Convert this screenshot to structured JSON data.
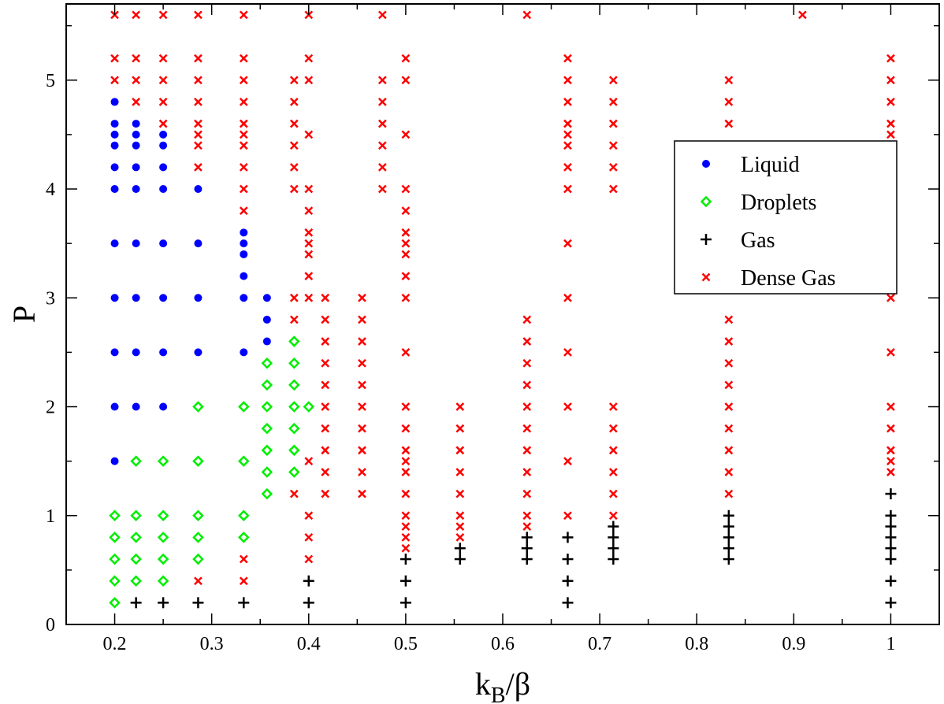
{
  "chart_data": {
    "type": "scatter",
    "xlabel": "k_B/β",
    "ylabel": "P",
    "xlim": [
      0.15,
      1.05
    ],
    "ylim": [
      0,
      5.7
    ],
    "x_ticks": [
      0.2,
      0.3,
      0.4,
      0.5,
      0.6,
      0.7,
      0.8,
      0.9,
      1.0
    ],
    "x_tick_labels": [
      "0.2",
      "0.3",
      "0.4",
      "0.5",
      "0.6",
      "0.7",
      "0.8",
      "0.9",
      "1"
    ],
    "y_ticks": [
      0,
      1,
      2,
      3,
      4,
      5
    ],
    "y_tick_labels": [
      "0",
      "1",
      "2",
      "3",
      "4",
      "5"
    ],
    "grid": false,
    "legend_position": "top-right",
    "series": [
      {
        "name": "Liquid",
        "marker": "circle",
        "color": "#0000ff",
        "points": [
          [
            0.2,
            1.5
          ],
          [
            0.2,
            2.0
          ],
          [
            0.2,
            2.5
          ],
          [
            0.2,
            3.0
          ],
          [
            0.2,
            3.5
          ],
          [
            0.2,
            4.0
          ],
          [
            0.2,
            4.2
          ],
          [
            0.2,
            4.4
          ],
          [
            0.2,
            4.5
          ],
          [
            0.2,
            4.6
          ],
          [
            0.2,
            4.8
          ],
          [
            0.222,
            2.0
          ],
          [
            0.222,
            2.5
          ],
          [
            0.222,
            3.0
          ],
          [
            0.222,
            3.5
          ],
          [
            0.222,
            4.0
          ],
          [
            0.222,
            4.2
          ],
          [
            0.222,
            4.4
          ],
          [
            0.222,
            4.5
          ],
          [
            0.222,
            4.6
          ],
          [
            0.25,
            2.0
          ],
          [
            0.25,
            2.5
          ],
          [
            0.25,
            3.0
          ],
          [
            0.25,
            3.5
          ],
          [
            0.25,
            4.0
          ],
          [
            0.25,
            4.2
          ],
          [
            0.25,
            4.4
          ],
          [
            0.25,
            4.5
          ],
          [
            0.286,
            2.5
          ],
          [
            0.286,
            3.0
          ],
          [
            0.286,
            3.5
          ],
          [
            0.286,
            4.0
          ],
          [
            0.333,
            2.5
          ],
          [
            0.333,
            3.0
          ],
          [
            0.333,
            3.2
          ],
          [
            0.333,
            3.4
          ],
          [
            0.333,
            3.5
          ],
          [
            0.333,
            3.6
          ],
          [
            0.357,
            2.6
          ],
          [
            0.357,
            2.8
          ],
          [
            0.357,
            3.0
          ]
        ]
      },
      {
        "name": "Droplets",
        "marker": "diamond",
        "color": "#00ee00",
        "points": [
          [
            0.2,
            0.2
          ],
          [
            0.2,
            0.4
          ],
          [
            0.2,
            0.6
          ],
          [
            0.2,
            0.8
          ],
          [
            0.2,
            1.0
          ],
          [
            0.222,
            0.4
          ],
          [
            0.222,
            0.6
          ],
          [
            0.222,
            0.8
          ],
          [
            0.222,
            1.0
          ],
          [
            0.222,
            1.5
          ],
          [
            0.25,
            0.4
          ],
          [
            0.25,
            0.6
          ],
          [
            0.25,
            0.8
          ],
          [
            0.25,
            1.0
          ],
          [
            0.25,
            1.5
          ],
          [
            0.286,
            0.6
          ],
          [
            0.286,
            0.8
          ],
          [
            0.286,
            1.0
          ],
          [
            0.286,
            1.5
          ],
          [
            0.286,
            2.0
          ],
          [
            0.333,
            0.8
          ],
          [
            0.333,
            1.0
          ],
          [
            0.333,
            1.5
          ],
          [
            0.333,
            2.0
          ],
          [
            0.357,
            1.2
          ],
          [
            0.357,
            1.4
          ],
          [
            0.357,
            1.6
          ],
          [
            0.357,
            1.8
          ],
          [
            0.357,
            2.0
          ],
          [
            0.357,
            2.2
          ],
          [
            0.357,
            2.4
          ],
          [
            0.385,
            1.4
          ],
          [
            0.385,
            1.6
          ],
          [
            0.385,
            1.8
          ],
          [
            0.385,
            2.0
          ],
          [
            0.385,
            2.2
          ],
          [
            0.385,
            2.4
          ],
          [
            0.385,
            2.6
          ],
          [
            0.4,
            2.0
          ]
        ]
      },
      {
        "name": "Gas",
        "marker": "plus",
        "color": "#000000",
        "points": [
          [
            0.222,
            0.2
          ],
          [
            0.25,
            0.2
          ],
          [
            0.286,
            0.2
          ],
          [
            0.333,
            0.2
          ],
          [
            0.4,
            0.2
          ],
          [
            0.4,
            0.4
          ],
          [
            0.5,
            0.2
          ],
          [
            0.5,
            0.4
          ],
          [
            0.5,
            0.6
          ],
          [
            0.556,
            0.6
          ],
          [
            0.556,
            0.7
          ],
          [
            0.625,
            0.6
          ],
          [
            0.625,
            0.7
          ],
          [
            0.625,
            0.8
          ],
          [
            0.667,
            0.2
          ],
          [
            0.667,
            0.4
          ],
          [
            0.667,
            0.6
          ],
          [
            0.667,
            0.8
          ],
          [
            0.714,
            0.6
          ],
          [
            0.714,
            0.7
          ],
          [
            0.714,
            0.8
          ],
          [
            0.714,
            0.9
          ],
          [
            0.833,
            0.6
          ],
          [
            0.833,
            0.7
          ],
          [
            0.833,
            0.8
          ],
          [
            0.833,
            0.9
          ],
          [
            0.833,
            1.0
          ],
          [
            1.0,
            0.2
          ],
          [
            1.0,
            0.4
          ],
          [
            1.0,
            0.6
          ],
          [
            1.0,
            0.7
          ],
          [
            1.0,
            0.8
          ],
          [
            1.0,
            0.9
          ],
          [
            1.0,
            1.0
          ],
          [
            1.0,
            1.2
          ]
        ]
      },
      {
        "name": "Dense Gas",
        "marker": "cross",
        "color": "#ff0000",
        "points": [
          [
            0.2,
            5.0
          ],
          [
            0.2,
            5.2
          ],
          [
            0.2,
            5.6
          ],
          [
            0.222,
            4.8
          ],
          [
            0.222,
            5.0
          ],
          [
            0.222,
            5.2
          ],
          [
            0.222,
            5.6
          ],
          [
            0.25,
            4.6
          ],
          [
            0.25,
            4.8
          ],
          [
            0.25,
            5.0
          ],
          [
            0.25,
            5.2
          ],
          [
            0.25,
            5.6
          ],
          [
            0.286,
            0.4
          ],
          [
            0.286,
            4.2
          ],
          [
            0.286,
            4.4
          ],
          [
            0.286,
            4.5
          ],
          [
            0.286,
            4.6
          ],
          [
            0.286,
            4.8
          ],
          [
            0.286,
            5.0
          ],
          [
            0.286,
            5.2
          ],
          [
            0.286,
            5.6
          ],
          [
            0.333,
            0.4
          ],
          [
            0.333,
            0.6
          ],
          [
            0.333,
            3.8
          ],
          [
            0.333,
            4.0
          ],
          [
            0.333,
            4.2
          ],
          [
            0.333,
            4.4
          ],
          [
            0.333,
            4.5
          ],
          [
            0.333,
            4.6
          ],
          [
            0.333,
            4.8
          ],
          [
            0.333,
            5.0
          ],
          [
            0.333,
            5.2
          ],
          [
            0.333,
            5.6
          ],
          [
            0.385,
            1.2
          ],
          [
            0.385,
            2.8
          ],
          [
            0.385,
            3.0
          ],
          [
            0.385,
            4.0
          ],
          [
            0.385,
            4.2
          ],
          [
            0.385,
            4.4
          ],
          [
            0.385,
            4.6
          ],
          [
            0.385,
            4.8
          ],
          [
            0.385,
            5.0
          ],
          [
            0.4,
            0.6
          ],
          [
            0.4,
            0.8
          ],
          [
            0.4,
            1.0
          ],
          [
            0.4,
            1.5
          ],
          [
            0.4,
            3.0
          ],
          [
            0.4,
            3.2
          ],
          [
            0.4,
            3.4
          ],
          [
            0.4,
            3.5
          ],
          [
            0.4,
            3.6
          ],
          [
            0.4,
            3.8
          ],
          [
            0.4,
            4.0
          ],
          [
            0.4,
            4.5
          ],
          [
            0.4,
            5.0
          ],
          [
            0.4,
            5.2
          ],
          [
            0.4,
            5.6
          ],
          [
            0.417,
            1.2
          ],
          [
            0.417,
            1.4
          ],
          [
            0.417,
            1.6
          ],
          [
            0.417,
            1.8
          ],
          [
            0.417,
            2.0
          ],
          [
            0.417,
            2.2
          ],
          [
            0.417,
            2.4
          ],
          [
            0.417,
            2.6
          ],
          [
            0.417,
            2.8
          ],
          [
            0.417,
            3.0
          ],
          [
            0.455,
            1.2
          ],
          [
            0.455,
            1.4
          ],
          [
            0.455,
            1.6
          ],
          [
            0.455,
            1.8
          ],
          [
            0.455,
            2.0
          ],
          [
            0.455,
            2.2
          ],
          [
            0.455,
            2.4
          ],
          [
            0.455,
            2.6
          ],
          [
            0.455,
            2.8
          ],
          [
            0.455,
            3.0
          ],
          [
            0.476,
            4.0
          ],
          [
            0.476,
            4.2
          ],
          [
            0.476,
            4.4
          ],
          [
            0.476,
            4.6
          ],
          [
            0.476,
            4.8
          ],
          [
            0.476,
            5.0
          ],
          [
            0.476,
            5.6
          ],
          [
            0.5,
            0.7
          ],
          [
            0.5,
            0.8
          ],
          [
            0.5,
            0.9
          ],
          [
            0.5,
            1.0
          ],
          [
            0.5,
            1.2
          ],
          [
            0.5,
            1.4
          ],
          [
            0.5,
            1.5
          ],
          [
            0.5,
            1.6
          ],
          [
            0.5,
            1.8
          ],
          [
            0.5,
            2.0
          ],
          [
            0.5,
            2.5
          ],
          [
            0.5,
            3.0
          ],
          [
            0.5,
            3.2
          ],
          [
            0.5,
            3.4
          ],
          [
            0.5,
            3.5
          ],
          [
            0.5,
            3.6
          ],
          [
            0.5,
            3.8
          ],
          [
            0.5,
            4.0
          ],
          [
            0.5,
            4.5
          ],
          [
            0.5,
            5.0
          ],
          [
            0.5,
            5.2
          ],
          [
            0.556,
            0.8
          ],
          [
            0.556,
            0.9
          ],
          [
            0.556,
            1.0
          ],
          [
            0.556,
            1.2
          ],
          [
            0.556,
            1.4
          ],
          [
            0.556,
            1.6
          ],
          [
            0.556,
            1.8
          ],
          [
            0.556,
            2.0
          ],
          [
            0.625,
            0.9
          ],
          [
            0.625,
            1.0
          ],
          [
            0.625,
            1.2
          ],
          [
            0.625,
            1.4
          ],
          [
            0.625,
            1.6
          ],
          [
            0.625,
            1.8
          ],
          [
            0.625,
            2.0
          ],
          [
            0.625,
            2.2
          ],
          [
            0.625,
            2.4
          ],
          [
            0.625,
            2.6
          ],
          [
            0.625,
            2.8
          ],
          [
            0.625,
            5.6
          ],
          [
            0.667,
            1.0
          ],
          [
            0.667,
            1.5
          ],
          [
            0.667,
            2.0
          ],
          [
            0.667,
            2.5
          ],
          [
            0.667,
            3.0
          ],
          [
            0.667,
            3.5
          ],
          [
            0.667,
            4.0
          ],
          [
            0.667,
            4.2
          ],
          [
            0.667,
            4.4
          ],
          [
            0.667,
            4.5
          ],
          [
            0.667,
            4.6
          ],
          [
            0.667,
            4.8
          ],
          [
            0.667,
            5.0
          ],
          [
            0.667,
            5.2
          ],
          [
            0.714,
            1.0
          ],
          [
            0.714,
            1.2
          ],
          [
            0.714,
            1.4
          ],
          [
            0.714,
            1.6
          ],
          [
            0.714,
            1.8
          ],
          [
            0.714,
            2.0
          ],
          [
            0.714,
            4.0
          ],
          [
            0.714,
            4.2
          ],
          [
            0.714,
            4.4
          ],
          [
            0.714,
            4.6
          ],
          [
            0.714,
            4.8
          ],
          [
            0.714,
            5.0
          ],
          [
            0.833,
            1.2
          ],
          [
            0.833,
            1.4
          ],
          [
            0.833,
            1.6
          ],
          [
            0.833,
            1.8
          ],
          [
            0.833,
            2.0
          ],
          [
            0.833,
            2.2
          ],
          [
            0.833,
            2.4
          ],
          [
            0.833,
            2.6
          ],
          [
            0.833,
            2.8
          ],
          [
            0.833,
            4.6
          ],
          [
            0.833,
            4.8
          ],
          [
            0.833,
            5.0
          ],
          [
            0.909,
            5.6
          ],
          [
            1.0,
            1.4
          ],
          [
            1.0,
            1.5
          ],
          [
            1.0,
            1.6
          ],
          [
            1.0,
            1.8
          ],
          [
            1.0,
            2.0
          ],
          [
            1.0,
            2.5
          ],
          [
            1.0,
            3.0
          ],
          [
            1.0,
            3.5
          ],
          [
            1.0,
            4.0
          ],
          [
            1.0,
            4.2
          ],
          [
            1.0,
            4.4
          ],
          [
            1.0,
            4.5
          ],
          [
            1.0,
            4.6
          ],
          [
            1.0,
            4.8
          ],
          [
            1.0,
            5.0
          ],
          [
            1.0,
            5.2
          ]
        ]
      }
    ]
  }
}
